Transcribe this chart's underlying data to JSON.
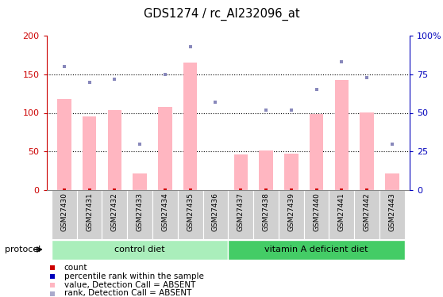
{
  "title": "GDS1274 / rc_AI232096_at",
  "samples": [
    "GSM27430",
    "GSM27431",
    "GSM27432",
    "GSM27433",
    "GSM27434",
    "GSM27435",
    "GSM27436",
    "GSM27437",
    "GSM27438",
    "GSM27439",
    "GSM27440",
    "GSM27441",
    "GSM27442",
    "GSM27443"
  ],
  "pink_bars": [
    118,
    95,
    104,
    22,
    108,
    165,
    0,
    46,
    51,
    47,
    98,
    143,
    101,
    22
  ],
  "blue_sq_val": [
    80,
    70,
    72,
    30,
    75,
    93,
    57,
    0,
    52,
    52,
    65,
    83,
    73,
    30
  ],
  "blue_sq_show": [
    true,
    true,
    true,
    true,
    true,
    true,
    true,
    false,
    true,
    true,
    true,
    true,
    true,
    true
  ],
  "red_sq_show": [
    true,
    true,
    true,
    false,
    true,
    true,
    false,
    true,
    true,
    true,
    true,
    true,
    true,
    false
  ],
  "ylim_left": [
    0,
    200
  ],
  "ylim_right": [
    0,
    100
  ],
  "yticks_left": [
    0,
    50,
    100,
    150,
    200
  ],
  "yticks_right": [
    0,
    25,
    50,
    75,
    100
  ],
  "ytick_labels_right": [
    "0",
    "25",
    "50",
    "75",
    "100%"
  ],
  "groups": [
    {
      "label": "control diet",
      "start": 0,
      "end": 6,
      "color": "#AAEEBB"
    },
    {
      "label": "vitamin A deficient diet",
      "start": 7,
      "end": 13,
      "color": "#44CC66"
    }
  ],
  "bar_width": 0.55,
  "pink_color": "#FFB6C1",
  "blue_color": "#8888BB",
  "red_color": "#CC0000",
  "dark_blue": "#0000BB",
  "axis_left_color": "#CC0000",
  "axis_right_color": "#0000BB",
  "tick_label_color_left": "#CC0000",
  "tick_label_color_right": "#0000BB",
  "legend_items": [
    {
      "label": "count",
      "color": "#CC0000"
    },
    {
      "label": "percentile rank within the sample",
      "color": "#0000BB"
    },
    {
      "label": "value, Detection Call = ABSENT",
      "color": "#FFB6C1"
    },
    {
      "label": "rank, Detection Call = ABSENT",
      "color": "#AAAACC"
    }
  ]
}
